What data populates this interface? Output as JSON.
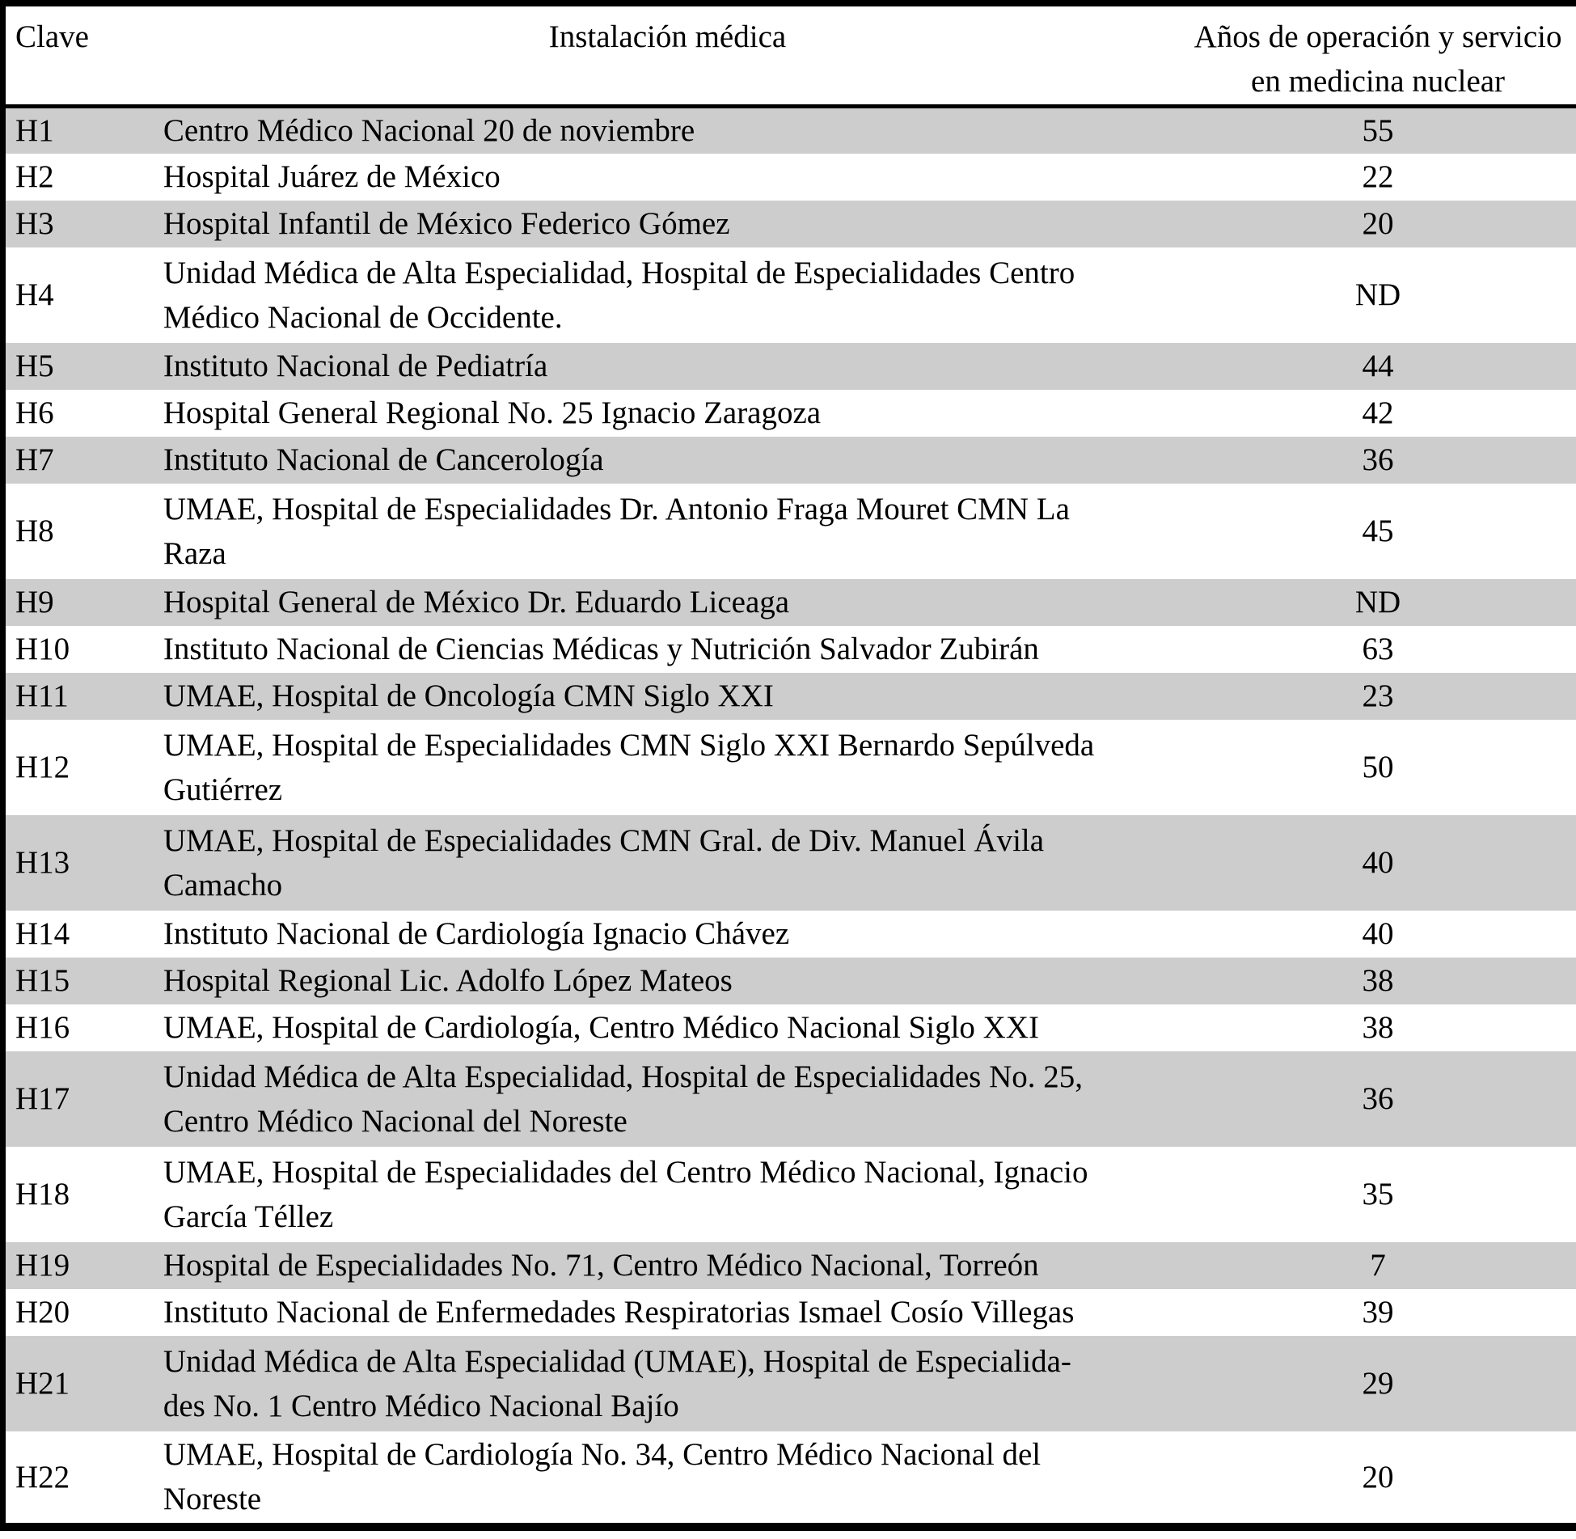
{
  "colors": {
    "row_stripe": "#cdcdcd",
    "border": "#000000",
    "text": "#000000",
    "background": "#ffffff"
  },
  "table": {
    "columns": {
      "clave": "Clave",
      "instalacion": "Instalación médica",
      "anios": "Años de operación y servicio\nen medicina nuclear"
    },
    "rows": [
      {
        "clave": "H1",
        "instalacion": "Centro Médico Nacional 20 de noviembre",
        "anios": "55"
      },
      {
        "clave": "H2",
        "instalacion": "Hospital Juárez de México",
        "anios": "22"
      },
      {
        "clave": "H3",
        "instalacion": "Hospital Infantil de México Federico Gómez",
        "anios": "20"
      },
      {
        "clave": "H4",
        "instalacion": "Unidad Médica de Alta Especialidad, Hospital de Especialidades Centro\nMédico Nacional de Occidente.",
        "anios": "ND"
      },
      {
        "clave": "H5",
        "instalacion": "Instituto Nacional de Pediatría",
        "anios": "44"
      },
      {
        "clave": "H6",
        "instalacion": "Hospital General Regional No. 25 Ignacio Zaragoza",
        "anios": "42"
      },
      {
        "clave": "H7",
        "instalacion": "Instituto Nacional de Cancerología",
        "anios": "36"
      },
      {
        "clave": "H8",
        "instalacion": "UMAE, Hospital de Especialidades Dr. Antonio Fraga Mouret CMN La\nRaza",
        "anios": "45"
      },
      {
        "clave": "H9",
        "instalacion": "Hospital General de México Dr. Eduardo Liceaga",
        "anios": "ND"
      },
      {
        "clave": "H10",
        "instalacion": "Instituto Nacional de Ciencias Médicas y Nutrición Salvador Zubirán",
        "anios": "63"
      },
      {
        "clave": "H11",
        "instalacion": "UMAE, Hospital de Oncología CMN Siglo XXI",
        "anios": "23"
      },
      {
        "clave": "H12",
        "instalacion": "UMAE, Hospital de Especialidades CMN Siglo XXI Bernardo Sepúlveda\nGutiérrez",
        "anios": "50"
      },
      {
        "clave": "H13",
        "instalacion": "UMAE, Hospital de Especialidades CMN Gral. de Div. Manuel Ávila\nCamacho",
        "anios": "40"
      },
      {
        "clave": "H14",
        "instalacion": "Instituto Nacional de Cardiología Ignacio Chávez",
        "anios": "40"
      },
      {
        "clave": "H15",
        "instalacion": "Hospital Regional Lic. Adolfo López Mateos",
        "anios": "38"
      },
      {
        "clave": "H16",
        "instalacion": "UMAE, Hospital de Cardiología, Centro Médico Nacional Siglo XXI",
        "anios": "38"
      },
      {
        "clave": "H17",
        "instalacion": "Unidad Médica de Alta Especialidad, Hospital de Especialidades No. 25,\nCentro Médico Nacional del Noreste",
        "anios": "36"
      },
      {
        "clave": "H18",
        "instalacion": "UMAE, Hospital de Especialidades del Centro Médico Nacional, Ignacio\nGarcía Téllez",
        "anios": "35"
      },
      {
        "clave": "H19",
        "instalacion": "Hospital de Especialidades No. 71, Centro Médico Nacional, Torreón",
        "anios": "7"
      },
      {
        "clave": "H20",
        "instalacion": "Instituto Nacional de Enfermedades Respiratorias Ismael Cosío Villegas",
        "anios": "39"
      },
      {
        "clave": "H21",
        "instalacion": "Unidad Médica de Alta Especialidad (UMAE), Hospital de Especialida-\ndes No. 1 Centro Médico Nacional Bajío",
        "anios": "29"
      },
      {
        "clave": "H22",
        "instalacion": "UMAE, Hospital de Cardiología No. 34, Centro Médico Nacional del\nNoreste",
        "anios": "20"
      }
    ]
  }
}
